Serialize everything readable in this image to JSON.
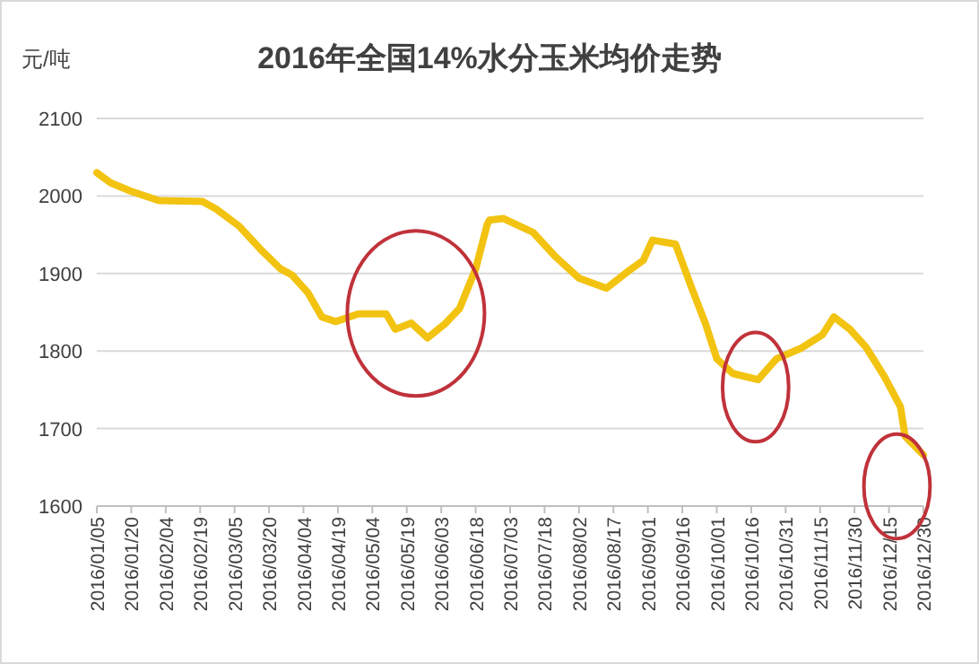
{
  "chart_data": {
    "type": "line",
    "title": "2016年全国14%水分玉米均价走势",
    "ylabel": "元/吨",
    "x": [
      "2016-01-05",
      "2016-01-11",
      "2016-01-20",
      "2016-02-01",
      "2016-02-20",
      "2016-02-26",
      "2016-03-07",
      "2016-03-17",
      "2016-03-25",
      "2016-03-30",
      "2016-04-06",
      "2016-04-12",
      "2016-04-18",
      "2016-04-28",
      "2016-05-10",
      "2016-05-14",
      "2016-05-21",
      "2016-05-28",
      "2016-06-05",
      "2016-06-11",
      "2016-06-18",
      "2016-06-23",
      "2016-06-24",
      "2016-06-30",
      "2016-07-13",
      "2016-07-23",
      "2016-08-02",
      "2016-08-14",
      "2016-08-23",
      "2016-08-30",
      "2016-09-03",
      "2016-09-13",
      "2016-09-20",
      "2016-09-26",
      "2016-10-01",
      "2016-10-08",
      "2016-10-19",
      "2016-10-27",
      "2016-11-07",
      "2016-11-16",
      "2016-11-21",
      "2016-11-28",
      "2016-12-05",
      "2016-12-13",
      "2016-12-20",
      "2016-12-22",
      "2016-12-30"
    ],
    "series": [
      {
        "color": "#f2c311",
        "values": [
          2030,
          2017,
          2006,
          1994,
          1993,
          1983,
          1961,
          1929,
          1906,
          1898,
          1875,
          1844,
          1838,
          1848,
          1848,
          1828,
          1836,
          1817,
          1836,
          1855,
          1906,
          1963,
          1969,
          1971,
          1953,
          1921,
          1894,
          1881,
          1902,
          1917,
          1943,
          1938,
          1882,
          1836,
          1790,
          1771,
          1763,
          1790,
          1804,
          1821,
          1844,
          1828,
          1805,
          1767,
          1728,
          1690,
          1666
        ]
      }
    ],
    "xlim": [
      "2016-01-05",
      "2016-12-30"
    ],
    "xticks": [
      {
        "value": "2016-01-05",
        "label": "2016/01/05"
      },
      {
        "value": "2016-01-20",
        "label": "2016/01/20"
      },
      {
        "value": "2016-02-04",
        "label": "2016/02/04"
      },
      {
        "value": "2016-02-19",
        "label": "2016/02/19"
      },
      {
        "value": "2016-03-05",
        "label": "2016/03/05"
      },
      {
        "value": "2016-03-20",
        "label": "2016/03/20"
      },
      {
        "value": "2016-04-04",
        "label": "2016/04/04"
      },
      {
        "value": "2016-04-19",
        "label": "2016/04/19"
      },
      {
        "value": "2016-05-04",
        "label": "2016/05/04"
      },
      {
        "value": "2016-05-19",
        "label": "2016/05/19"
      },
      {
        "value": "2016-06-03",
        "label": "2016/06/03"
      },
      {
        "value": "2016-06-18",
        "label": "2016/06/18"
      },
      {
        "value": "2016-07-03",
        "label": "2016/07/03"
      },
      {
        "value": "2016-07-18",
        "label": "2016/07/18"
      },
      {
        "value": "2016-08-02",
        "label": "2016/08/02"
      },
      {
        "value": "2016-08-17",
        "label": "2016/08/17"
      },
      {
        "value": "2016-09-01",
        "label": "2016/09/01"
      },
      {
        "value": "2016-09-16",
        "label": "2016/09/16"
      },
      {
        "value": "2016-10-01",
        "label": "2016/10/01"
      },
      {
        "value": "2016-10-16",
        "label": "2016/10/16"
      },
      {
        "value": "2016-10-31",
        "label": "2016/10/31"
      },
      {
        "value": "2016-11-15",
        "label": "2016/11/15"
      },
      {
        "value": "2016-11-30",
        "label": "2016/11/30"
      },
      {
        "value": "2016-12-15",
        "label": "2016/12/15"
      },
      {
        "value": "2016-12-30",
        "label": "2016/12/30"
      }
    ],
    "ylim": [
      1600,
      2100
    ],
    "yticks": [
      1600,
      1700,
      1800,
      1900,
      2000,
      2100
    ],
    "grid": "y",
    "marker": "none",
    "line_style": "solid"
  }
}
